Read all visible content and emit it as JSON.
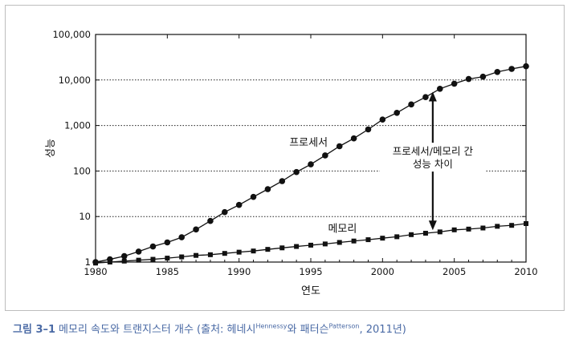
{
  "chart_data": {
    "type": "line",
    "yscale": "log",
    "xlabel": "연도",
    "ylabel": "성능",
    "xlim": [
      1980,
      2010
    ],
    "ylim": [
      1,
      100000
    ],
    "x_ticks": [
      "1980",
      "1985",
      "1990",
      "1995",
      "2000",
      "2005",
      "2010"
    ],
    "y_ticks": [
      "1",
      "10",
      "100",
      "1,000",
      "10,000",
      "100,000"
    ],
    "grid": "dotted horizontal at decades",
    "series": [
      {
        "name": "프로세서",
        "marker": "circle",
        "x": [
          1980,
          1981,
          1982,
          1983,
          1984,
          1985,
          1986,
          1987,
          1988,
          1989,
          1990,
          1991,
          1992,
          1993,
          1994,
          1995,
          1996,
          1997,
          1998,
          1999,
          2000,
          2001,
          2002,
          2003,
          2004,
          2005,
          2006,
          2007,
          2008,
          2009,
          2010
        ],
        "values": [
          1,
          1.15,
          1.35,
          1.7,
          2.2,
          2.7,
          3.5,
          5.2,
          8,
          12.5,
          18,
          27,
          40,
          60,
          95,
          140,
          220,
          350,
          520,
          820,
          1350,
          1900,
          2900,
          4200,
          6400,
          8300,
          10500,
          11800,
          15000,
          17500,
          20000
        ]
      },
      {
        "name": "메모리",
        "marker": "square",
        "x": [
          1980,
          1981,
          1982,
          1983,
          1984,
          1985,
          1986,
          1987,
          1988,
          1989,
          1990,
          1991,
          1992,
          1993,
          1994,
          1995,
          1996,
          1997,
          1998,
          1999,
          2000,
          2001,
          2002,
          2003,
          2004,
          2005,
          2006,
          2007,
          2008,
          2009,
          2010
        ],
        "values": [
          0.95,
          1,
          1.05,
          1.1,
          1.15,
          1.22,
          1.3,
          1.4,
          1.45,
          1.55,
          1.65,
          1.75,
          1.9,
          2.05,
          2.2,
          2.35,
          2.5,
          2.7,
          2.9,
          3.1,
          3.35,
          3.6,
          4.0,
          4.3,
          4.6,
          5.1,
          5.3,
          5.6,
          6.1,
          6.4,
          7.0
        ]
      }
    ],
    "annotations": {
      "processor_label": "프로세서",
      "memory_label": "메모리",
      "gap_label_line1": "프로세서/메모리 간",
      "gap_label_line2": "성능 차이",
      "gap_arrow_year": 2003.5
    }
  },
  "caption": {
    "figure_label": "그림 3–1",
    "text_before": "메모리 속도와 트랜지스터 개수 (출처: 헤네시",
    "sup1": "Hennessy",
    "text_middle": "와 패터슨",
    "sup2": "Patterson",
    "text_after": ", 2011년)"
  }
}
